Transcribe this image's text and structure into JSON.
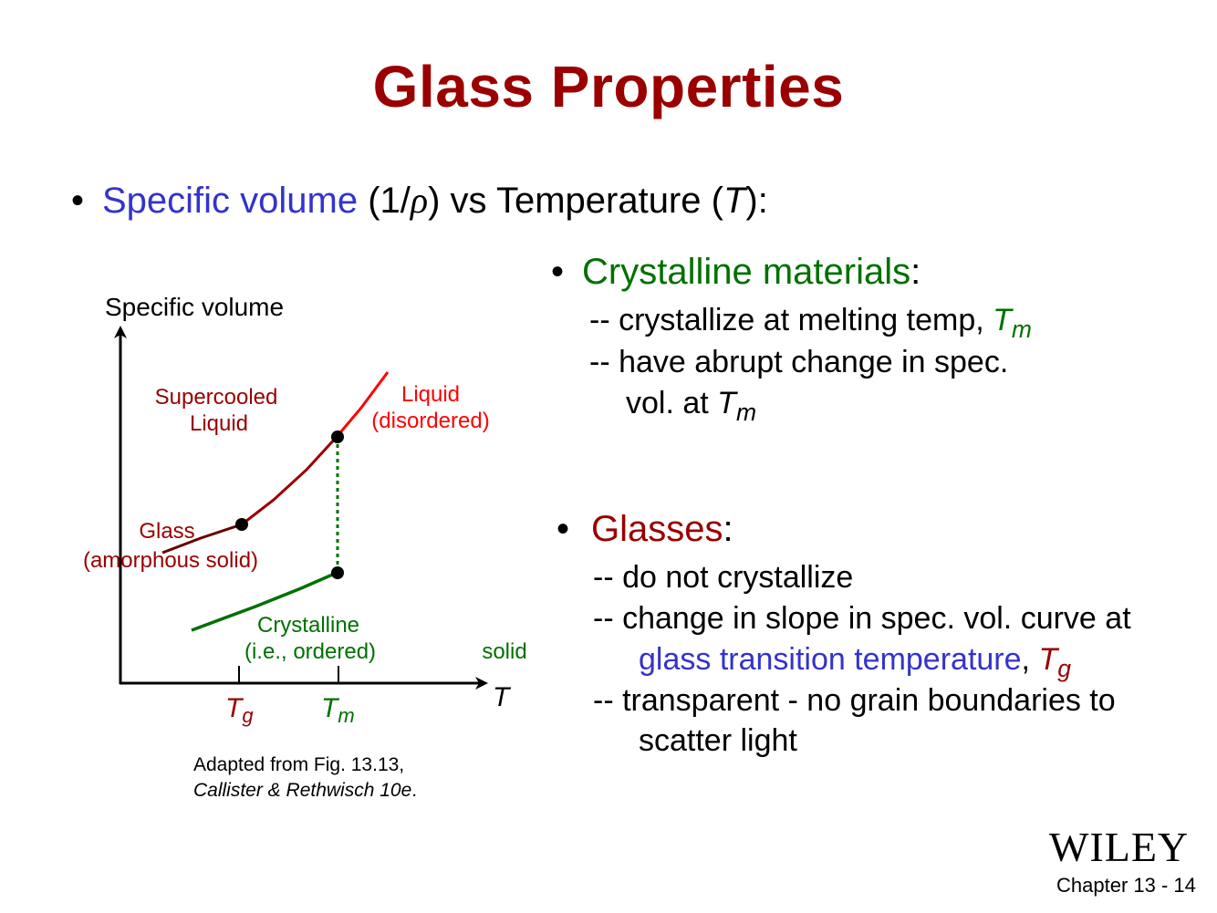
{
  "title": "Glass Properties",
  "intro": {
    "bullet": "•",
    "term": "Specific volume",
    "paren_open": " (1/",
    "rho": "ρ",
    "mid": ") vs Temperature (",
    "t": "T",
    "end": "):"
  },
  "diagram": {
    "ylabel": "Specific volume",
    "xlabel": "T",
    "supercooled_1": "Supercooled",
    "supercooled_2": "Liquid",
    "liquid_1": "Liquid",
    "liquid_2": "(disordered)",
    "glass_1": "Glass",
    "glass_2": "(amorphous solid)",
    "crystal_1": "Crystalline",
    "crystal_2": "(i.e., ordered)",
    "solid": "solid",
    "tg_main": "T",
    "tg_sub": "g",
    "tm_main": "T",
    "tm_sub": "m",
    "colors": {
      "liquid": "#ff0000",
      "supercooled": "#990000",
      "glass": "#660000",
      "crystalline": "#007000",
      "dotted": "#007000"
    }
  },
  "caption": {
    "line1": "Adapted from Fig. 13.13,",
    "line2": "Callister & Rethwisch 10e",
    "line2_end": "."
  },
  "crystalline": {
    "bullet": "•",
    "heading": "Crystalline materials",
    "colon": ":",
    "line1": "-- crystallize at melting temp, ",
    "line1_t": "T",
    "line1_sub": "m",
    "line2": "-- have abrupt change in spec.",
    "line3": "vol. at ",
    "line3_t": "T",
    "line3_sub": "m"
  },
  "glasses": {
    "bullet": "•",
    "heading": "Glasses",
    "colon": ":",
    "line1": "-- do not crystallize",
    "line2": "-- change in slope in spec. vol. curve at",
    "line3_term": "glass transition temperature",
    "line3_comma": ", ",
    "line3_t": "T",
    "line3_sub": "g",
    "line4": "-- transparent  - no grain boundaries to",
    "line5": "scatter light"
  },
  "brand": "WILEY",
  "footer": "Chapter 13 - 14"
}
